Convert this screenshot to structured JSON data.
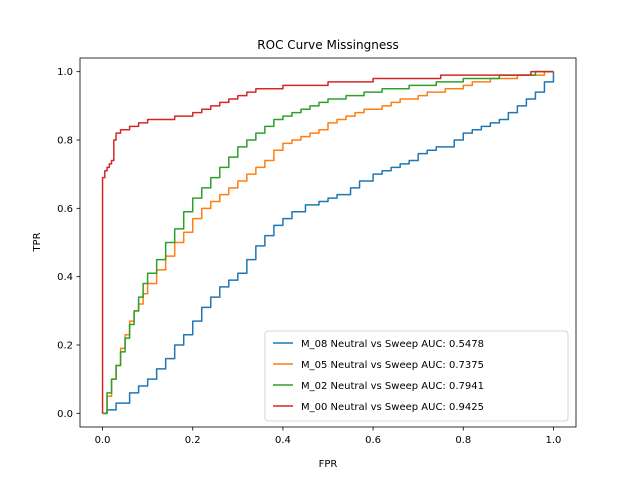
{
  "chart_data": {
    "type": "line",
    "title": "ROC Curve Missingness",
    "xlabel": "FPR",
    "ylabel": "TPR",
    "xlim": [
      -0.05,
      1.05
    ],
    "ylim": [
      -0.04,
      1.04
    ],
    "x_ticks": [
      0.0,
      0.2,
      0.4,
      0.6,
      0.8,
      1.0
    ],
    "y_ticks": [
      0.0,
      0.2,
      0.4,
      0.6,
      0.8,
      1.0
    ],
    "x_tick_labels": [
      "0.0",
      "0.2",
      "0.4",
      "0.6",
      "0.8",
      "1.0"
    ],
    "y_tick_labels": [
      "0.0",
      "0.2",
      "0.4",
      "0.6",
      "0.8",
      "1.0"
    ],
    "grid": false,
    "legend_position": "lower-right",
    "series": [
      {
        "name": "M_08 Neutral vs Sweep AUC: 0.5478",
        "color": "#1f77b4",
        "x": [
          0.0,
          0.01,
          0.03,
          0.06,
          0.08,
          0.1,
          0.12,
          0.14,
          0.16,
          0.18,
          0.2,
          0.22,
          0.24,
          0.26,
          0.28,
          0.3,
          0.32,
          0.34,
          0.36,
          0.38,
          0.4,
          0.42,
          0.45,
          0.48,
          0.5,
          0.52,
          0.55,
          0.57,
          0.6,
          0.62,
          0.64,
          0.66,
          0.68,
          0.7,
          0.72,
          0.74,
          0.76,
          0.78,
          0.8,
          0.82,
          0.84,
          0.86,
          0.88,
          0.9,
          0.92,
          0.94,
          0.96,
          0.98,
          1.0
        ],
        "y": [
          0.0,
          0.01,
          0.03,
          0.06,
          0.08,
          0.1,
          0.13,
          0.16,
          0.2,
          0.23,
          0.27,
          0.31,
          0.34,
          0.37,
          0.39,
          0.41,
          0.45,
          0.49,
          0.52,
          0.55,
          0.57,
          0.59,
          0.61,
          0.62,
          0.63,
          0.64,
          0.66,
          0.68,
          0.7,
          0.71,
          0.72,
          0.73,
          0.74,
          0.76,
          0.77,
          0.78,
          0.78,
          0.8,
          0.82,
          0.83,
          0.84,
          0.85,
          0.86,
          0.88,
          0.9,
          0.92,
          0.94,
          0.97,
          1.0
        ]
      },
      {
        "name": "M_05 Neutral vs Sweep AUC: 0.7375",
        "color": "#ff7f0e",
        "x": [
          0.0,
          0.01,
          0.02,
          0.03,
          0.04,
          0.05,
          0.06,
          0.07,
          0.08,
          0.09,
          0.1,
          0.12,
          0.14,
          0.16,
          0.18,
          0.2,
          0.22,
          0.24,
          0.26,
          0.28,
          0.3,
          0.32,
          0.34,
          0.36,
          0.38,
          0.4,
          0.42,
          0.44,
          0.46,
          0.48,
          0.5,
          0.52,
          0.54,
          0.56,
          0.58,
          0.6,
          0.62,
          0.64,
          0.66,
          0.68,
          0.7,
          0.72,
          0.74,
          0.76,
          0.78,
          0.8,
          0.82,
          0.84,
          0.86,
          0.88,
          0.9,
          0.92,
          0.94,
          0.96,
          0.98,
          1.0
        ],
        "y": [
          0.0,
          0.05,
          0.1,
          0.14,
          0.19,
          0.23,
          0.27,
          0.3,
          0.32,
          0.35,
          0.38,
          0.42,
          0.46,
          0.5,
          0.53,
          0.57,
          0.6,
          0.62,
          0.64,
          0.66,
          0.68,
          0.7,
          0.72,
          0.74,
          0.77,
          0.79,
          0.8,
          0.81,
          0.82,
          0.83,
          0.85,
          0.86,
          0.87,
          0.88,
          0.89,
          0.89,
          0.9,
          0.91,
          0.92,
          0.92,
          0.93,
          0.94,
          0.94,
          0.95,
          0.95,
          0.96,
          0.97,
          0.97,
          0.98,
          0.98,
          0.98,
          0.99,
          0.99,
          0.99,
          1.0,
          1.0
        ]
      },
      {
        "name": "M_02 Neutral vs Sweep AUC: 0.7941",
        "color": "#2ca02c",
        "x": [
          0.0,
          0.01,
          0.02,
          0.03,
          0.04,
          0.05,
          0.06,
          0.07,
          0.08,
          0.09,
          0.1,
          0.12,
          0.14,
          0.16,
          0.18,
          0.2,
          0.22,
          0.24,
          0.26,
          0.28,
          0.3,
          0.32,
          0.34,
          0.36,
          0.38,
          0.4,
          0.42,
          0.44,
          0.46,
          0.48,
          0.5,
          0.52,
          0.54,
          0.56,
          0.58,
          0.6,
          0.62,
          0.64,
          0.66,
          0.68,
          0.7,
          0.72,
          0.74,
          0.76,
          0.78,
          0.8,
          0.84,
          0.88,
          0.92,
          0.96,
          1.0
        ],
        "y": [
          0.0,
          0.06,
          0.1,
          0.14,
          0.18,
          0.22,
          0.26,
          0.3,
          0.34,
          0.38,
          0.41,
          0.45,
          0.5,
          0.54,
          0.59,
          0.63,
          0.66,
          0.69,
          0.72,
          0.75,
          0.78,
          0.8,
          0.82,
          0.84,
          0.86,
          0.87,
          0.88,
          0.89,
          0.9,
          0.91,
          0.92,
          0.92,
          0.93,
          0.93,
          0.94,
          0.94,
          0.95,
          0.95,
          0.95,
          0.96,
          0.96,
          0.96,
          0.97,
          0.97,
          0.97,
          0.98,
          0.98,
          0.99,
          0.99,
          1.0,
          1.0
        ]
      },
      {
        "name": "M_00 Neutral vs Sweep AUC: 0.9425",
        "color": "#d62728",
        "x": [
          0.0,
          0.0,
          0.005,
          0.01,
          0.015,
          0.02,
          0.025,
          0.03,
          0.04,
          0.06,
          0.08,
          0.1,
          0.12,
          0.14,
          0.16,
          0.18,
          0.2,
          0.22,
          0.24,
          0.26,
          0.28,
          0.3,
          0.32,
          0.34,
          0.36,
          0.4,
          0.45,
          0.5,
          0.55,
          0.6,
          0.65,
          0.7,
          0.75,
          0.8,
          0.85,
          0.9,
          0.95,
          1.0
        ],
        "y": [
          0.0,
          0.69,
          0.71,
          0.72,
          0.73,
          0.74,
          0.8,
          0.82,
          0.83,
          0.84,
          0.85,
          0.86,
          0.86,
          0.86,
          0.87,
          0.87,
          0.88,
          0.89,
          0.9,
          0.91,
          0.92,
          0.93,
          0.94,
          0.95,
          0.95,
          0.96,
          0.96,
          0.97,
          0.97,
          0.98,
          0.98,
          0.98,
          0.99,
          0.99,
          0.99,
          0.99,
          1.0,
          1.0
        ]
      }
    ]
  }
}
